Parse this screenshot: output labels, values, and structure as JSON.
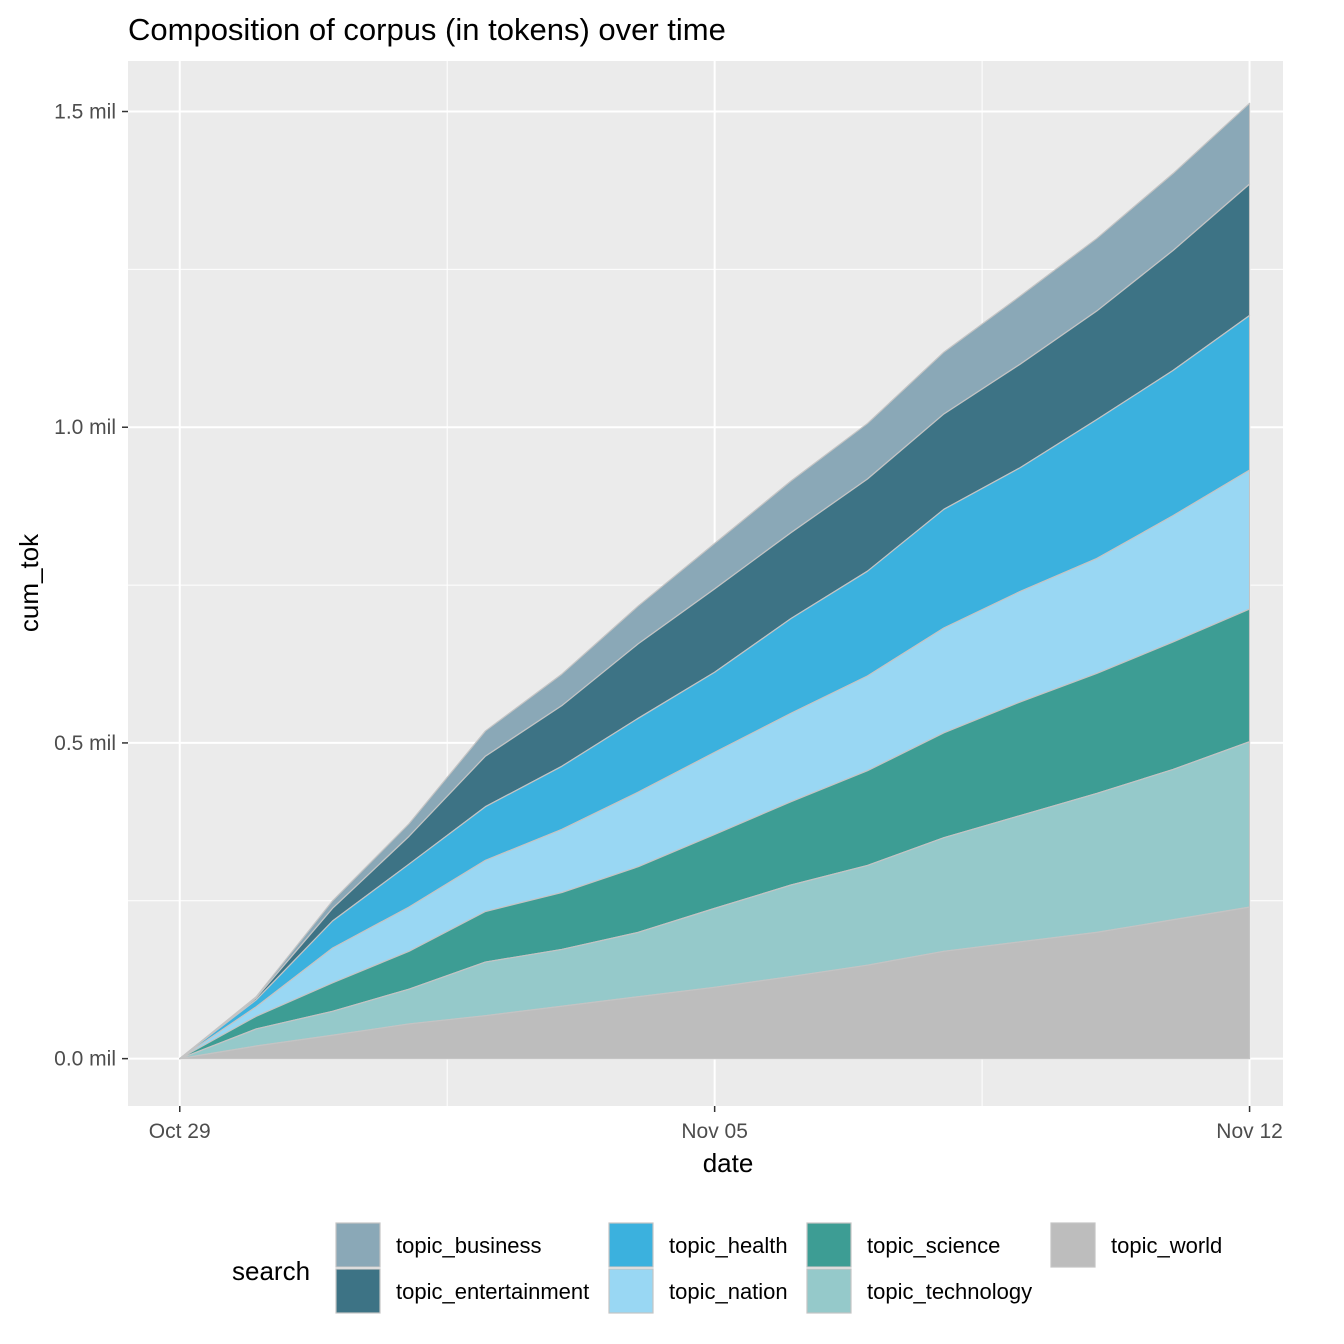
{
  "chart_data": {
    "type": "area",
    "title": "Composition of corpus (in tokens) over time",
    "xlabel": "date",
    "ylabel": "cum_tok",
    "x_tick_labels": [
      "Oct 29",
      "Nov 05",
      "Nov 12"
    ],
    "y_tick_labels": [
      "0.0 mil",
      "0.5 mil",
      "1.0 mil",
      "1.5 mil"
    ],
    "x": [
      "2023-10-29",
      "2023-10-30",
      "2023-10-31",
      "2023-11-01",
      "2023-11-02",
      "2023-11-03",
      "2023-11-04",
      "2023-11-05",
      "2023-11-06",
      "2023-11-07",
      "2023-11-08",
      "2023-11-09",
      "2023-11-10",
      "2023-11-11",
      "2023-11-12"
    ],
    "xlim": [
      "2023-10-28T07:45",
      "2023-11-12T10:30"
    ],
    "ylim": [
      -0.075,
      1.58
    ],
    "y_unit": "million tokens",
    "stacked": true,
    "grid": true,
    "legend_title": "search",
    "legend_position": "bottom",
    "series": [
      {
        "name": "topic_business",
        "color": "#8aa8b7",
        "values": [
          0,
          0.002,
          0.012,
          0.02,
          0.04,
          0.05,
          0.06,
          0.072,
          0.082,
          0.088,
          0.098,
          0.108,
          0.115,
          0.122,
          0.128
        ]
      },
      {
        "name": "topic_entertainment",
        "color": "#3d7385",
        "values": [
          0,
          0.003,
          0.02,
          0.044,
          0.08,
          0.096,
          0.118,
          0.132,
          0.136,
          0.146,
          0.151,
          0.164,
          0.172,
          0.19,
          0.208
        ]
      },
      {
        "name": "topic_health",
        "color": "#3bb1de",
        "values": [
          0,
          0.011,
          0.043,
          0.068,
          0.085,
          0.1,
          0.117,
          0.127,
          0.15,
          0.166,
          0.188,
          0.196,
          0.22,
          0.23,
          0.245
        ]
      },
      {
        "name": "topic_nation",
        "color": "#99d7f3",
        "values": [
          0,
          0.015,
          0.055,
          0.07,
          0.081,
          0.1,
          0.118,
          0.13,
          0.14,
          0.15,
          0.166,
          0.175,
          0.182,
          0.2,
          0.22
        ]
      },
      {
        "name": "topic_science",
        "color": "#3d9d94",
        "values": [
          0,
          0.02,
          0.045,
          0.06,
          0.08,
          0.09,
          0.104,
          0.117,
          0.132,
          0.15,
          0.166,
          0.18,
          0.19,
          0.202,
          0.21
        ]
      },
      {
        "name": "topic_technology",
        "color": "#95c9ca",
        "values": [
          0,
          0.027,
          0.038,
          0.055,
          0.085,
          0.09,
          0.102,
          0.125,
          0.145,
          0.158,
          0.18,
          0.2,
          0.22,
          0.238,
          0.262
        ]
      },
      {
        "name": "topic_world",
        "color": "#bdbdbd",
        "values": [
          0,
          0.02,
          0.037,
          0.055,
          0.068,
          0.083,
          0.098,
          0.113,
          0.13,
          0.148,
          0.17,
          0.185,
          0.2,
          0.22,
          0.24
        ]
      }
    ]
  }
}
